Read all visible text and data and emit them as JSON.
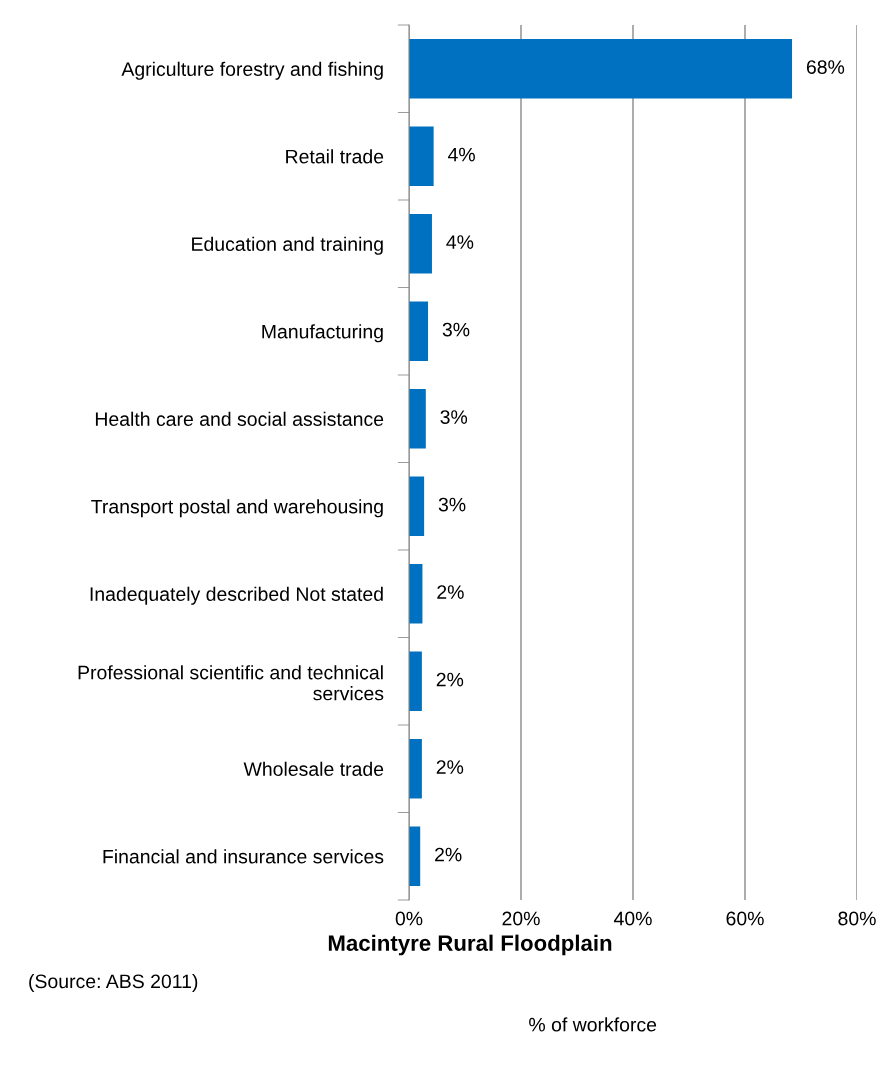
{
  "chart_data": {
    "type": "bar",
    "orientation": "horizontal",
    "title": "Macintyre Rural Floodplain",
    "xlabel": "% of workforce",
    "categories": [
      "Agriculture forestry and fishing",
      "Retail trade",
      "Education and training",
      "Manufacturing",
      "Health care and social assistance",
      "Transport postal and warehousing",
      "Inadequately described Not stated",
      "Professional scientific and technical services",
      "Wholesale trade",
      "Financial and insurance services"
    ],
    "values": [
      68.4,
      4.4,
      4.1,
      3.4,
      3.0,
      2.7,
      2.4,
      2.3,
      2.3,
      2.0
    ],
    "value_labels": [
      "68%",
      "4%",
      "4%",
      "3%",
      "3%",
      "3%",
      "2%",
      "2%",
      "2%",
      "2%"
    ],
    "color": "#0070c0",
    "xlim": [
      0,
      80
    ],
    "xticks": [
      {
        "value": 0,
        "label": "0%"
      },
      {
        "value": 20,
        "label": "20%"
      },
      {
        "value": 40,
        "label": "40%"
      },
      {
        "value": 60,
        "label": "60%"
      },
      {
        "value": 80,
        "label": "80%"
      }
    ],
    "grid": "x",
    "annotations": [
      "(Source: ABS 2011)"
    ]
  }
}
